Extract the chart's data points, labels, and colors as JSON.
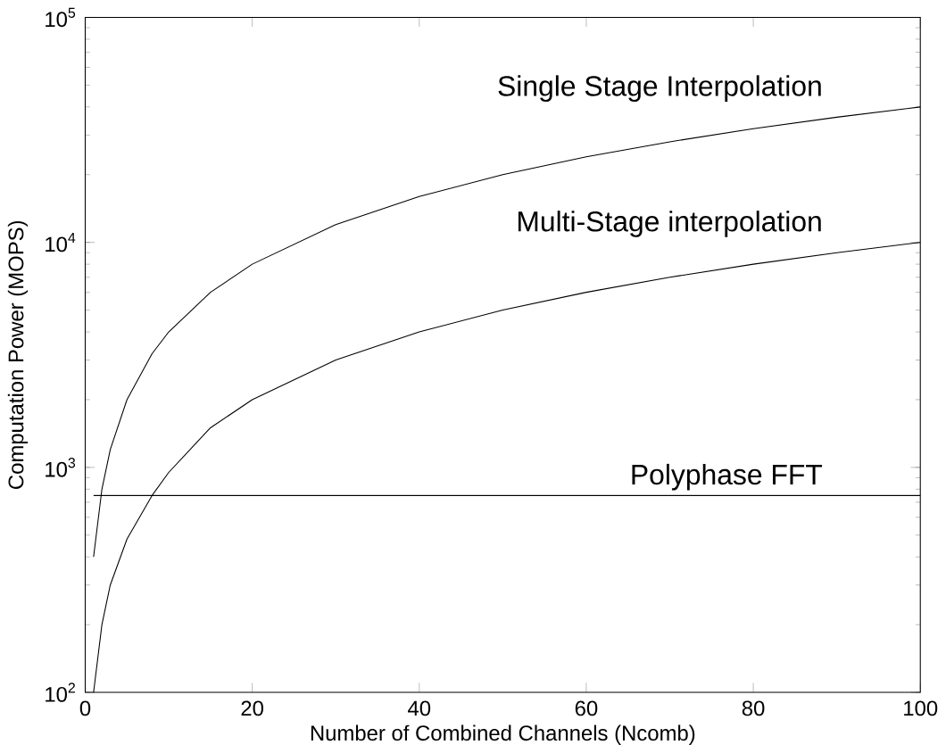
{
  "chart_data": {
    "type": "line",
    "xlabel": "Number of Combined Channels (Ncomb)",
    "ylabel": "Computation Power (MOPS)",
    "log": "y",
    "xlim": [
      0,
      100
    ],
    "xticks": [
      0,
      20,
      40,
      60,
      80,
      100
    ],
    "ylim": [
      100,
      100000
    ],
    "yticks": [
      {
        "value": 100,
        "label": "10$^{2}$"
      },
      {
        "value": 1000,
        "label": "10$^{3}$"
      },
      {
        "value": 10000,
        "label": "10$^{4}$"
      },
      {
        "value": 100000,
        "label": "10$^{5}$"
      }
    ],
    "marker": "none",
    "line_style": "solid",
    "series": [
      {
        "name": "Single Stage Interpolation",
        "color": "#000000",
        "x": [
          1,
          2,
          3,
          5,
          8,
          10,
          15,
          20,
          30,
          40,
          50,
          60,
          70,
          80,
          90,
          100
        ],
        "values": [
          400,
          800,
          1200,
          2000,
          3200,
          4000,
          6000,
          8000,
          12000,
          16000,
          20000,
          24000,
          28000,
          32000,
          36000,
          40000
        ]
      },
      {
        "name": "Multi-Stage interpolation",
        "color": "#000000",
        "x": [
          1,
          2,
          3,
          5,
          8,
          10,
          15,
          20,
          30,
          40,
          50,
          60,
          70,
          80,
          90,
          100
        ],
        "values": [
          100,
          200,
          300,
          480,
          750,
          950,
          1500,
          2000,
          3000,
          4000,
          5000,
          6000,
          7000,
          8000,
          9000,
          10000
        ]
      },
      {
        "name": "Polyphase FFT",
        "color": "#000000",
        "x": [
          1,
          100
        ],
        "values": [
          750,
          750
        ]
      }
    ]
  }
}
